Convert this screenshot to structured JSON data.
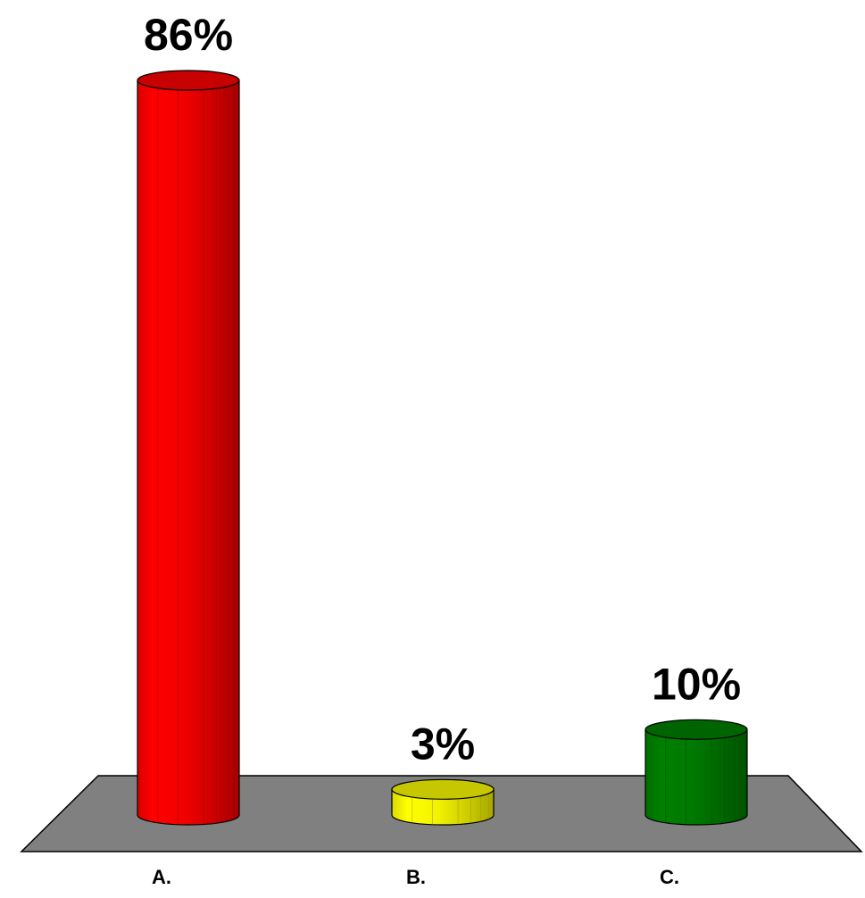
{
  "chart_data": {
    "type": "bar",
    "style": "3d-cylinder",
    "categories": [
      "A.",
      "B.",
      "C."
    ],
    "values": [
      86,
      3,
      10
    ],
    "value_labels": [
      "86%",
      "3%",
      "10%"
    ],
    "colors": [
      "#ff0000",
      "#ffff00",
      "#008000"
    ],
    "floor_color": "#808080",
    "ylim": [
      0,
      100
    ],
    "grid": false,
    "legend": "none"
  }
}
